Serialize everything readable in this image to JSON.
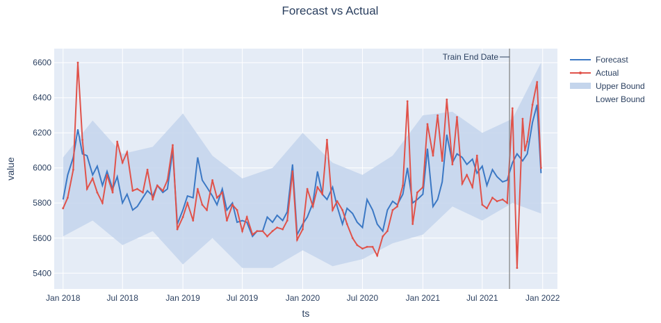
{
  "chart_data": {
    "type": "line",
    "title": "Forecast vs Actual",
    "xlabel": "ts",
    "ylabel": "value",
    "x_range": [
      "2017-12-05",
      "2022-02-15"
    ],
    "ylim": [
      5310,
      6680
    ],
    "x_tick_dates": [
      "2018-01-01",
      "2018-07-01",
      "2019-01-01",
      "2019-07-01",
      "2020-01-01",
      "2020-07-01",
      "2021-01-01",
      "2021-07-01",
      "2022-01-01"
    ],
    "x_tick_labels": [
      "Jan 2018",
      "Jul 2018",
      "Jan 2019",
      "Jul 2019",
      "Jan 2020",
      "Jul 2020",
      "Jan 2021",
      "Jul 2021",
      "Jan 2022"
    ],
    "y_ticks": [
      5400,
      5600,
      5800,
      6000,
      6200,
      6400,
      6600
    ],
    "y_tick_labels": [
      "5400",
      "5600",
      "5800",
      "6000",
      "6200",
      "6400",
      "6600"
    ],
    "grid": true,
    "legend": "top-right",
    "annotation": {
      "text": "Train End Date",
      "date": "2021-09-22"
    },
    "colors": {
      "forecast": "#3b78c4",
      "actual": "#e0524a",
      "band": "#c4d5ec",
      "plot_bg": "#e5ecf6",
      "grid": "#ffffff",
      "vline": "#7f7f7f"
    },
    "series": [
      {
        "name": "Forecast",
        "x": [
          "2018-01-01",
          "2018-01-15",
          "2018-02-01",
          "2018-02-15",
          "2018-03-01",
          "2018-03-15",
          "2018-04-01",
          "2018-04-15",
          "2018-05-01",
          "2018-05-15",
          "2018-06-01",
          "2018-06-15",
          "2018-07-01",
          "2018-07-15",
          "2018-08-01",
          "2018-08-15",
          "2018-09-01",
          "2018-09-15",
          "2018-10-01",
          "2018-10-15",
          "2018-11-01",
          "2018-11-15",
          "2018-12-01",
          "2018-12-15",
          "2019-01-01",
          "2019-01-15",
          "2019-02-01",
          "2019-02-15",
          "2019-03-01",
          "2019-03-15",
          "2019-04-01",
          "2019-04-15",
          "2019-05-01",
          "2019-05-15",
          "2019-06-01",
          "2019-06-15",
          "2019-07-01",
          "2019-07-15",
          "2019-08-01",
          "2019-08-15",
          "2019-09-01",
          "2019-09-15",
          "2019-10-01",
          "2019-10-15",
          "2019-11-01",
          "2019-11-15",
          "2019-12-01",
          "2019-12-15",
          "2020-01-01",
          "2020-01-15",
          "2020-02-01",
          "2020-02-15",
          "2020-03-01",
          "2020-03-15",
          "2020-04-01",
          "2020-04-15",
          "2020-05-01",
          "2020-05-15",
          "2020-06-01",
          "2020-06-15",
          "2020-07-01",
          "2020-07-15",
          "2020-08-01",
          "2020-08-15",
          "2020-09-01",
          "2020-09-15",
          "2020-10-01",
          "2020-10-15",
          "2020-11-01",
          "2020-11-15",
          "2020-12-01",
          "2020-12-15",
          "2021-01-01",
          "2021-01-15",
          "2021-02-01",
          "2021-02-15",
          "2021-03-01",
          "2021-03-15",
          "2021-04-01",
          "2021-04-15",
          "2021-05-01",
          "2021-05-15",
          "2021-06-01",
          "2021-06-15",
          "2021-07-01",
          "2021-07-15",
          "2021-08-01",
          "2021-08-15",
          "2021-09-01",
          "2021-09-15",
          "2021-10-01",
          "2021-10-15",
          "2021-11-01",
          "2021-11-15",
          "2021-12-01",
          "2021-12-15",
          "2021-12-27"
        ],
        "y": [
          5820,
          5960,
          6060,
          6220,
          6080,
          6070,
          5960,
          6010,
          5900,
          5980,
          5880,
          5950,
          5800,
          5850,
          5760,
          5780,
          5830,
          5870,
          5840,
          5900,
          5860,
          5880,
          6100,
          5680,
          5760,
          5840,
          5830,
          6060,
          5930,
          5890,
          5840,
          5790,
          5880,
          5760,
          5800,
          5690,
          5700,
          5690,
          5610,
          5640,
          5640,
          5720,
          5690,
          5730,
          5700,
          5750,
          6020,
          5620,
          5680,
          5720,
          5800,
          5980,
          5850,
          5820,
          5890,
          5780,
          5680,
          5770,
          5740,
          5690,
          5660,
          5820,
          5760,
          5680,
          5640,
          5760,
          5810,
          5790,
          5850,
          6000,
          5800,
          5820,
          5850,
          6110,
          5780,
          5820,
          5920,
          6190,
          6030,
          6080,
          6060,
          6020,
          6050,
          5970,
          6010,
          5900,
          5990,
          5950,
          5920,
          5930,
          6030,
          6080,
          6040,
          6080,
          6260,
          6360,
          5970
        ]
      },
      {
        "name": "Actual",
        "x": [
          "2018-01-01",
          "2018-01-15",
          "2018-02-01",
          "2018-02-15",
          "2018-03-01",
          "2018-03-15",
          "2018-04-01",
          "2018-04-15",
          "2018-05-01",
          "2018-05-15",
          "2018-06-01",
          "2018-06-15",
          "2018-07-01",
          "2018-07-15",
          "2018-08-01",
          "2018-08-15",
          "2018-09-01",
          "2018-09-15",
          "2018-10-01",
          "2018-10-15",
          "2018-11-01",
          "2018-11-15",
          "2018-12-01",
          "2018-12-15",
          "2019-01-01",
          "2019-01-15",
          "2019-02-01",
          "2019-02-15",
          "2019-03-01",
          "2019-03-15",
          "2019-04-01",
          "2019-04-15",
          "2019-05-01",
          "2019-05-15",
          "2019-06-01",
          "2019-06-15",
          "2019-07-01",
          "2019-07-15",
          "2019-08-01",
          "2019-08-15",
          "2019-09-01",
          "2019-09-15",
          "2019-10-01",
          "2019-10-15",
          "2019-11-01",
          "2019-11-15",
          "2019-12-01",
          "2019-12-15",
          "2020-01-01",
          "2020-01-15",
          "2020-02-01",
          "2020-02-15",
          "2020-03-01",
          "2020-03-15",
          "2020-04-01",
          "2020-04-15",
          "2020-05-01",
          "2020-05-15",
          "2020-06-01",
          "2020-06-15",
          "2020-07-01",
          "2020-07-15",
          "2020-08-01",
          "2020-08-15",
          "2020-09-01",
          "2020-09-15",
          "2020-10-01",
          "2020-10-15",
          "2020-11-01",
          "2020-11-15",
          "2020-12-01",
          "2020-12-15",
          "2021-01-01",
          "2021-01-15",
          "2021-02-01",
          "2021-02-15",
          "2021-03-01",
          "2021-03-15",
          "2021-04-01",
          "2021-04-15",
          "2021-05-01",
          "2021-05-15",
          "2021-06-01",
          "2021-06-15",
          "2021-07-01",
          "2021-07-15",
          "2021-08-01",
          "2021-08-15",
          "2021-09-01",
          "2021-09-15",
          "2021-10-01",
          "2021-10-15",
          "2021-11-01",
          "2021-11-08",
          "2021-11-15",
          "2021-12-01",
          "2021-12-15",
          "2021-12-27"
        ],
        "y": [
          5770,
          5830,
          5990,
          6600,
          6160,
          5880,
          5940,
          5860,
          5800,
          5960,
          5860,
          6150,
          6030,
          6090,
          5870,
          5880,
          5860,
          5990,
          5820,
          5900,
          5870,
          5930,
          6130,
          5650,
          5720,
          5800,
          5700,
          5880,
          5790,
          5760,
          5930,
          5830,
          5860,
          5700,
          5790,
          5760,
          5640,
          5720,
          5620,
          5640,
          5640,
          5610,
          5640,
          5660,
          5650,
          5700,
          5980,
          5590,
          5650,
          5880,
          5780,
          5890,
          5850,
          6160,
          5760,
          5810,
          5760,
          5680,
          5600,
          5560,
          5540,
          5550,
          5550,
          5500,
          5610,
          5640,
          5760,
          5780,
          5900,
          6380,
          5680,
          5860,
          5890,
          6250,
          6070,
          6300,
          6040,
          6390,
          6020,
          6290,
          5910,
          5960,
          5890,
          6070,
          5790,
          5770,
          5830,
          5810,
          5820,
          5800,
          6340,
          5430,
          6280,
          6100,
          6150,
          6360,
          6490,
          6000
        ]
      },
      {
        "name": "Upper Bound",
        "x": [
          "2018-01-01",
          "2018-04-01",
          "2018-07-01",
          "2018-10-01",
          "2019-01-01",
          "2019-04-01",
          "2019-07-01",
          "2019-10-01",
          "2020-01-01",
          "2020-04-01",
          "2020-07-01",
          "2020-10-01",
          "2021-01-01",
          "2021-04-01",
          "2021-07-01",
          "2021-10-01",
          "2021-12-27"
        ],
        "y": [
          6060,
          6270,
          6080,
          6120,
          6310,
          6070,
          5940,
          6000,
          6200,
          6030,
          5960,
          6070,
          6300,
          6320,
          6200,
          6280,
          6600
        ]
      },
      {
        "name": "Lower Bound",
        "x": [
          "2018-01-01",
          "2018-04-01",
          "2018-07-01",
          "2018-10-01",
          "2019-01-01",
          "2019-04-01",
          "2019-07-01",
          "2019-10-01",
          "2020-01-01",
          "2020-04-01",
          "2020-07-01",
          "2020-10-01",
          "2021-01-01",
          "2021-04-01",
          "2021-07-01",
          "2021-10-01",
          "2021-12-27"
        ],
        "y": [
          5610,
          5700,
          5560,
          5640,
          5450,
          5600,
          5430,
          5430,
          5530,
          5440,
          5480,
          5570,
          5620,
          5780,
          5700,
          5800,
          5740
        ]
      }
    ]
  }
}
